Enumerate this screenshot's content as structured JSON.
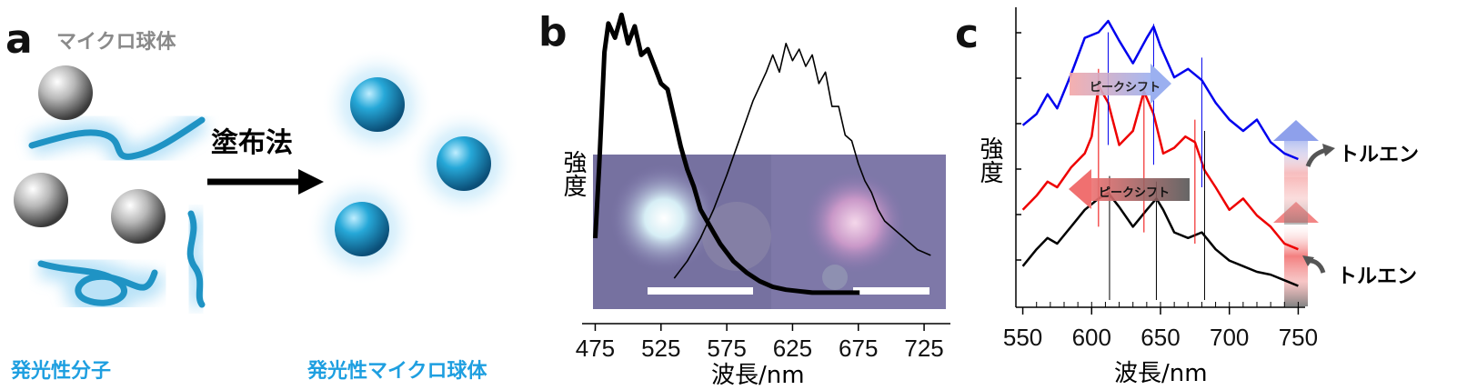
{
  "panel_a": {
    "label": "a",
    "microsphere_label": "マイクロ球体",
    "coating_label": "塗布法",
    "molecule_label": "発光性分子",
    "result_label": "発光性マイクロ球体",
    "colors": {
      "sphere_blue": "#1b9fd0",
      "molecule": "#2aa8d8",
      "glow": "#9fd8f4",
      "label_blue": "#1e9fe0",
      "gray_text": "#8a8a8a"
    }
  },
  "panel_b": {
    "label": "b",
    "ylabel": "強度",
    "xlabel": "波長/nm",
    "xticks": [
      "475",
      "525",
      "575",
      "625",
      "675",
      "725"
    ]
  },
  "panel_c": {
    "label": "c",
    "ylabel": "強度",
    "xlabel": "波長/nm",
    "xticks": [
      "550",
      "600",
      "650",
      "700",
      "750"
    ],
    "peak_shift_label": "ピークシフト",
    "toluene_label": "トルエン"
  },
  "chart_data": [
    {
      "type": "line",
      "panel": "b",
      "xlabel": "波長/nm",
      "ylabel": "強度",
      "xlim": [
        465,
        745
      ],
      "series": [
        {
          "color": "#000000",
          "style": "thick",
          "x": [
            475,
            478,
            482,
            485,
            490,
            495,
            500,
            505,
            510,
            515,
            520,
            525,
            530,
            535,
            540,
            545,
            550,
            555,
            560,
            565,
            570,
            575,
            580,
            590,
            600,
            610,
            620,
            630,
            640,
            650,
            660,
            670,
            676
          ],
          "y": [
            0.2,
            0.45,
            0.85,
            0.95,
            0.9,
            0.98,
            0.88,
            0.94,
            0.84,
            0.86,
            0.8,
            0.74,
            0.72,
            0.62,
            0.52,
            0.44,
            0.38,
            0.3,
            0.26,
            0.22,
            0.18,
            0.15,
            0.12,
            0.08,
            0.05,
            0.03,
            0.02,
            0.015,
            0.01,
            0.01,
            0.01,
            0.01,
            0.01
          ]
        },
        {
          "color": "#000000",
          "style": "thin",
          "x": [
            535,
            545,
            555,
            565,
            575,
            585,
            595,
            605,
            610,
            615,
            620,
            625,
            630,
            635,
            640,
            645,
            650,
            655,
            660,
            665,
            670,
            675,
            680,
            685,
            690,
            695,
            700,
            710,
            720,
            730
          ],
          "y": [
            0.06,
            0.12,
            0.2,
            0.3,
            0.42,
            0.55,
            0.68,
            0.78,
            0.84,
            0.78,
            0.88,
            0.82,
            0.86,
            0.8,
            0.84,
            0.74,
            0.78,
            0.66,
            0.66,
            0.56,
            0.54,
            0.46,
            0.4,
            0.36,
            0.3,
            0.26,
            0.24,
            0.2,
            0.16,
            0.14
          ]
        }
      ]
    },
    {
      "type": "line",
      "panel": "c",
      "xlabel": "波長/nm",
      "ylabel": "強度",
      "xlim": [
        545,
        755
      ],
      "xticks": [
        550,
        600,
        650,
        700,
        750
      ],
      "series": [
        {
          "color": "#0000ee",
          "x": [
            550,
            560,
            568,
            575,
            585,
            595,
            605,
            612,
            620,
            630,
            640,
            645,
            650,
            660,
            670,
            680,
            690,
            700,
            710,
            720,
            730,
            740,
            750
          ],
          "y": [
            0.62,
            0.66,
            0.73,
            0.68,
            0.8,
            0.93,
            0.95,
            0.99,
            0.92,
            0.84,
            0.93,
            0.97,
            0.9,
            0.79,
            0.82,
            0.78,
            0.7,
            0.64,
            0.6,
            0.64,
            0.56,
            0.52,
            0.5
          ]
        },
        {
          "color": "#ee0000",
          "x": [
            550,
            560,
            568,
            575,
            585,
            595,
            600,
            605,
            612,
            620,
            630,
            638,
            645,
            652,
            660,
            668,
            675,
            682,
            690,
            700,
            710,
            720,
            730,
            740,
            750
          ],
          "y": [
            0.32,
            0.37,
            0.42,
            0.4,
            0.47,
            0.52,
            0.58,
            0.76,
            0.7,
            0.55,
            0.6,
            0.74,
            0.66,
            0.52,
            0.54,
            0.58,
            0.56,
            0.46,
            0.4,
            0.32,
            0.36,
            0.3,
            0.26,
            0.2,
            0.18
          ]
        },
        {
          "color": "#000000",
          "x": [
            550,
            560,
            568,
            575,
            585,
            595,
            605,
            612,
            620,
            630,
            640,
            647,
            652,
            660,
            670,
            680,
            690,
            700,
            710,
            720,
            730,
            740,
            750
          ],
          "y": [
            0.12,
            0.18,
            0.22,
            0.2,
            0.26,
            0.32,
            0.36,
            0.38,
            0.33,
            0.26,
            0.32,
            0.36,
            0.32,
            0.24,
            0.22,
            0.24,
            0.18,
            0.14,
            0.12,
            0.1,
            0.09,
            0.07,
            0.05
          ]
        }
      ]
    }
  ]
}
